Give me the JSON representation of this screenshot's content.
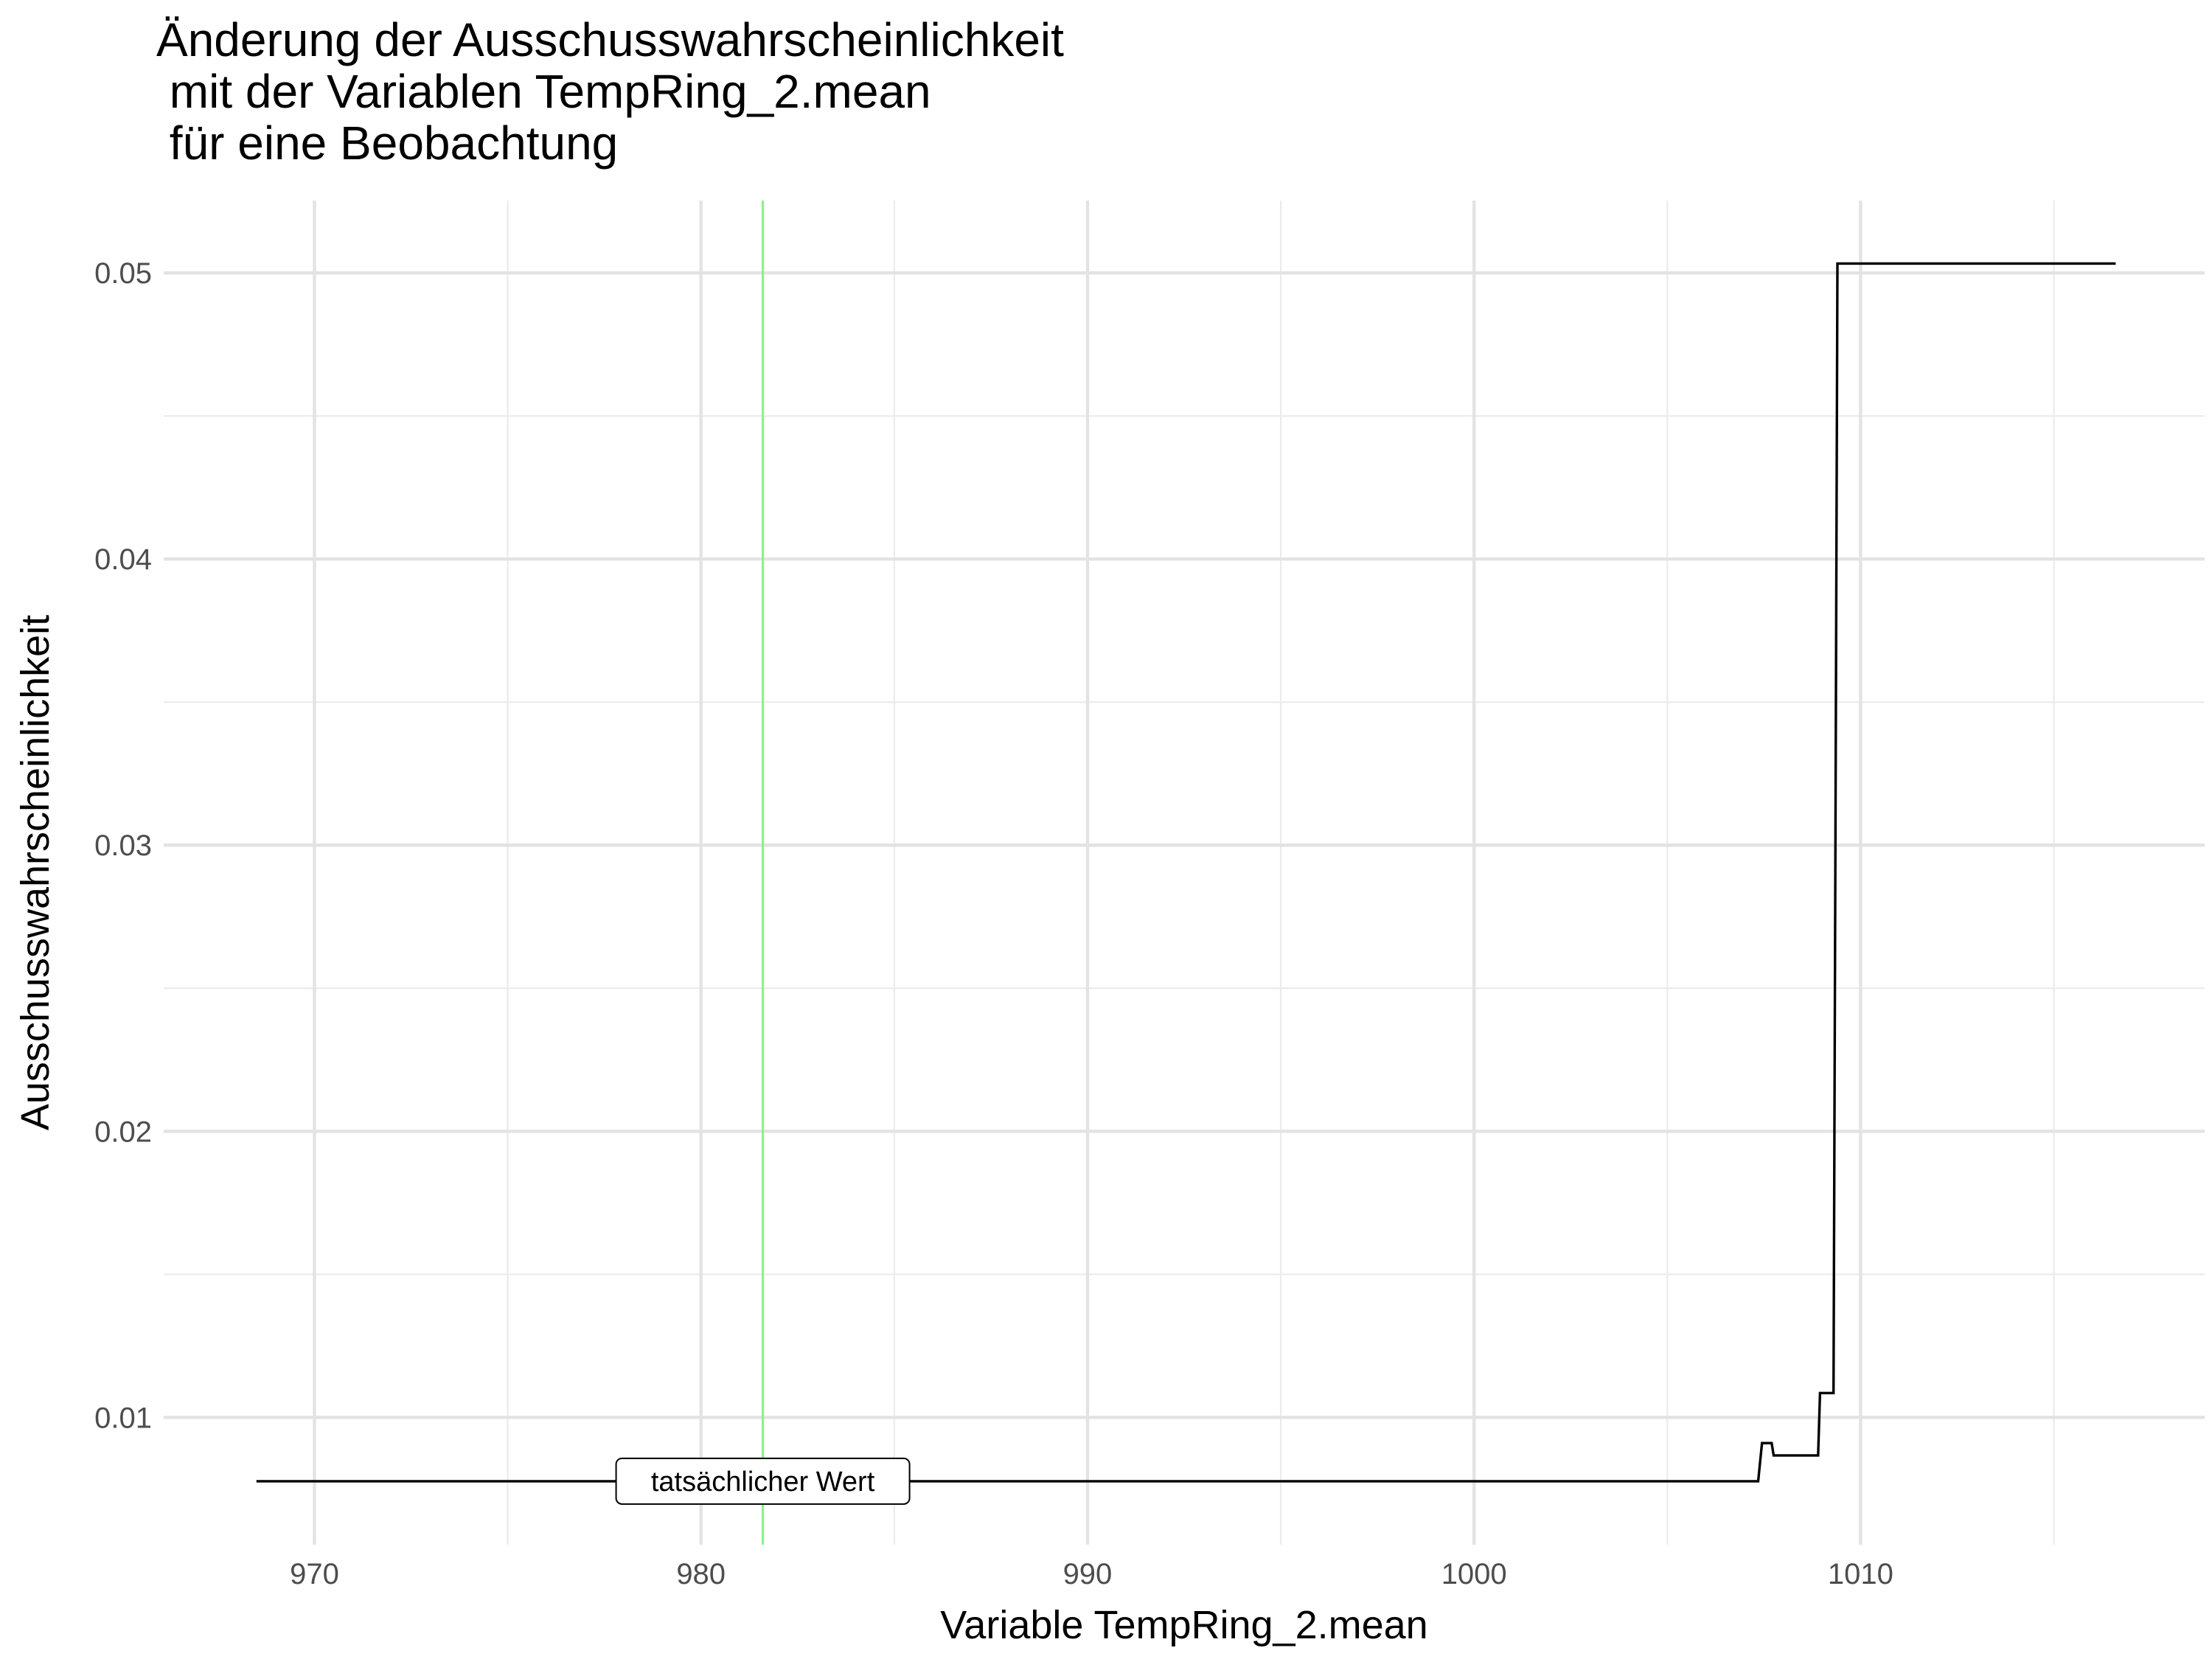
{
  "chart_data": {
    "type": "line",
    "title_lines": [
      "Änderung der Ausschusswahrscheinlichkeit",
      " mit der Variablen TempRing_2.mean",
      " für eine Beobachtung"
    ],
    "xlabel": "Variable TempRing_2.mean",
    "ylabel": "Ausschusswahrscheinlichkeit",
    "xlim": [
      966.1,
      1018.9
    ],
    "ylim": [
      0.00555,
      0.05253
    ],
    "x_ticks": [
      970,
      980,
      990,
      1000,
      1010
    ],
    "x_tick_labels": [
      "970",
      "980",
      "990",
      "1000",
      "1010"
    ],
    "x_minor_ticks": [
      975,
      985,
      995,
      1005,
      1015
    ],
    "y_ticks": [
      0.01,
      0.02,
      0.03,
      0.04,
      0.05
    ],
    "y_tick_labels": [
      "0.01",
      "0.02",
      "0.03",
      "0.04",
      "0.05"
    ],
    "y_minor_ticks": [
      0.015,
      0.025,
      0.035,
      0.045
    ],
    "grid": true,
    "series": [
      {
        "color": "#000000",
        "step": true,
        "points": [
          {
            "x": 968.5,
            "y": 0.00777
          },
          {
            "x": 1007.35,
            "y": 0.00777
          },
          {
            "x": 1007.45,
            "y": 0.0091
          },
          {
            "x": 1007.7,
            "y": 0.0091
          },
          {
            "x": 1007.75,
            "y": 0.00867
          },
          {
            "x": 1008.9,
            "y": 0.00867
          },
          {
            "x": 1008.95,
            "y": 0.01085
          },
          {
            "x": 1009.3,
            "y": 0.01085
          },
          {
            "x": 1009.4,
            "y": 0.05033
          },
          {
            "x": 1016.6,
            "y": 0.05033
          }
        ]
      }
    ],
    "reference_line": {
      "x": 981.6,
      "color": "#90ee90",
      "label": "tatsächlicher Wert",
      "label_y": 0.00777
    }
  }
}
